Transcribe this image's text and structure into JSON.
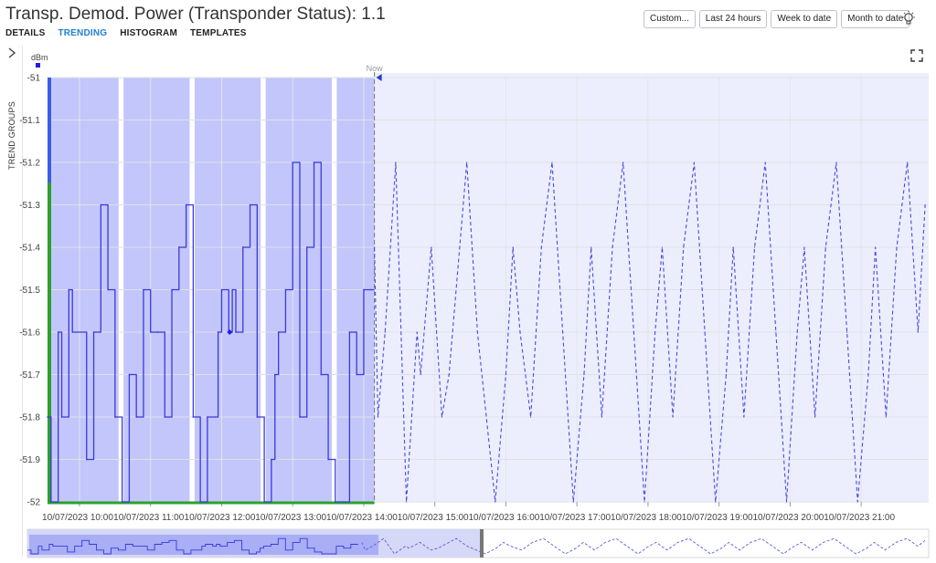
{
  "title": "Transp. Demod. Power (Transponder Status): 1.1",
  "tabs": [
    {
      "label": "DETAILS",
      "active": false
    },
    {
      "label": "TRENDING",
      "active": true
    },
    {
      "label": "HISTOGRAM",
      "active": false
    },
    {
      "label": "TEMPLATES",
      "active": false
    }
  ],
  "toolbar": {
    "custom": "Custom...",
    "last24": "Last 24 hours",
    "week": "Week to date",
    "month": "Month to date",
    "theme_icon": "bulb-icon"
  },
  "sidebar": {
    "label": "TREND GROUPS",
    "toggle_icon": "chevron-right-icon"
  },
  "fullscreen_icon": "fullscreen-icon",
  "colors": {
    "accent": "#1f7fd1",
    "series": "#3a3ad9",
    "band": "#c3c6fb",
    "forecast_band": "#eceefd",
    "status_good": "#2ca02c"
  },
  "chart_data": {
    "type": "line",
    "ylabel": "dBm",
    "ylim": [
      -52,
      -51
    ],
    "yticks": [
      "-51",
      "-51.1",
      "-51.2",
      "-51.3",
      "-51.4",
      "-51.5",
      "-51.6",
      "-51.7",
      "-51.8",
      "-51.9",
      "-52"
    ],
    "xticks": [
      "10/07/2023 10:00",
      "10/07/2023 11:00",
      "10/07/2023 12:00",
      "10/07/2023 13:00",
      "10/07/2023 14:00",
      "10/07/2023 15:00",
      "10/07/2023 16:00",
      "10/07/2023 17:00",
      "10/07/2023 18:00",
      "10/07/2023 19:00",
      "10/07/2023 20:00",
      "10/07/2023 21:00"
    ],
    "now_label": "Now",
    "now_hour": 14.15,
    "x_range_hours": [
      9.55,
      21.95
    ],
    "series": [
      {
        "kind": "actual",
        "step": true,
        "points": [
          [
            9.55,
            -51.8
          ],
          [
            9.6,
            -52
          ],
          [
            9.7,
            -51.6
          ],
          [
            9.75,
            -51.8
          ],
          [
            9.85,
            -51.5
          ],
          [
            9.9,
            -51.6
          ],
          [
            10.1,
            -51.9
          ],
          [
            10.2,
            -51.6
          ],
          [
            10.3,
            -51.3
          ],
          [
            10.4,
            -51.5
          ],
          [
            10.5,
            -51.8
          ],
          [
            10.6,
            -52
          ],
          [
            10.7,
            -51.7
          ],
          [
            10.8,
            -51.8
          ],
          [
            10.9,
            -51.5
          ],
          [
            11.0,
            -51.6
          ],
          [
            11.1,
            -51.6
          ],
          [
            11.2,
            -51.8
          ],
          [
            11.3,
            -51.5
          ],
          [
            11.4,
            -51.4
          ],
          [
            11.5,
            -51.3
          ],
          [
            11.6,
            -51.8
          ],
          [
            11.7,
            -52
          ],
          [
            11.8,
            -51.8
          ],
          [
            11.95,
            -51.6
          ],
          [
            12.0,
            -51.5
          ],
          [
            12.1,
            -51.6
          ],
          [
            12.15,
            -51.5
          ],
          [
            12.2,
            -51.6
          ],
          [
            12.3,
            -51.4
          ],
          [
            12.4,
            -51.3
          ],
          [
            12.5,
            -51.8
          ],
          [
            12.6,
            -52
          ],
          [
            12.7,
            -51.9
          ],
          [
            12.75,
            -51.7
          ],
          [
            12.8,
            -51.6
          ],
          [
            12.9,
            -51.5
          ],
          [
            13.0,
            -51.2
          ],
          [
            13.1,
            -51.8
          ],
          [
            13.2,
            -51.4
          ],
          [
            13.3,
            -51.2
          ],
          [
            13.4,
            -51.7
          ],
          [
            13.5,
            -51.9
          ],
          [
            13.6,
            -52
          ],
          [
            13.8,
            -51.6
          ],
          [
            13.9,
            -51.7
          ],
          [
            14.0,
            -51.5
          ],
          [
            14.1,
            -51.5
          ]
        ]
      },
      {
        "kind": "forecast",
        "step": false,
        "points": [
          [
            14.15,
            -51.4
          ],
          [
            14.2,
            -51.8
          ],
          [
            14.3,
            -51.6
          ],
          [
            14.45,
            -51.2
          ],
          [
            14.6,
            -52
          ],
          [
            14.75,
            -51.6
          ],
          [
            14.8,
            -51.7
          ],
          [
            14.95,
            -51.4
          ],
          [
            15.1,
            -51.8
          ],
          [
            15.2,
            -51.7
          ],
          [
            15.45,
            -51.2
          ],
          [
            15.6,
            -51.6
          ],
          [
            15.85,
            -52
          ],
          [
            16.0,
            -51.7
          ],
          [
            16.1,
            -51.4
          ],
          [
            16.2,
            -51.6
          ],
          [
            16.35,
            -51.8
          ],
          [
            16.5,
            -51.4
          ],
          [
            16.65,
            -51.2
          ],
          [
            16.8,
            -51.6
          ],
          [
            16.95,
            -52
          ],
          [
            17.1,
            -51.7
          ],
          [
            17.2,
            -51.4
          ],
          [
            17.35,
            -51.8
          ],
          [
            17.5,
            -51.4
          ],
          [
            17.65,
            -51.2
          ],
          [
            17.8,
            -51.6
          ],
          [
            17.95,
            -52
          ],
          [
            18.1,
            -51.6
          ],
          [
            18.2,
            -51.4
          ],
          [
            18.35,
            -51.8
          ],
          [
            18.5,
            -51.4
          ],
          [
            18.65,
            -51.2
          ],
          [
            18.8,
            -51.6
          ],
          [
            18.95,
            -52
          ],
          [
            19.1,
            -51.7
          ],
          [
            19.2,
            -51.4
          ],
          [
            19.35,
            -51.8
          ],
          [
            19.5,
            -51.4
          ],
          [
            19.65,
            -51.2
          ],
          [
            19.8,
            -51.6
          ],
          [
            19.95,
            -52
          ],
          [
            20.1,
            -51.6
          ],
          [
            20.2,
            -51.4
          ],
          [
            20.35,
            -51.8
          ],
          [
            20.5,
            -51.4
          ],
          [
            20.65,
            -51.2
          ],
          [
            20.8,
            -51.6
          ],
          [
            20.95,
            -52
          ],
          [
            21.1,
            -51.7
          ],
          [
            21.2,
            -51.4
          ],
          [
            21.35,
            -51.8
          ],
          [
            21.5,
            -51.4
          ],
          [
            21.65,
            -51.2
          ],
          [
            21.8,
            -51.6
          ],
          [
            21.9,
            -51.3
          ]
        ]
      }
    ],
    "band_gaps_hours": [
      [
        10.55,
        10.62
      ],
      [
        11.55,
        11.62
      ],
      [
        12.55,
        12.62
      ],
      [
        13.55,
        13.62
      ]
    ],
    "grid": true
  }
}
